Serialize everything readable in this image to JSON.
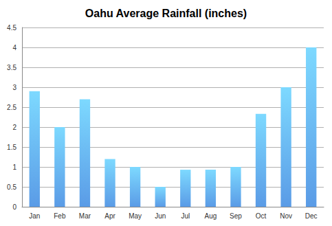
{
  "chart_data": {
    "type": "bar",
    "title": "Oahu Average Rainfall (inches)",
    "categories": [
      "Jan",
      "Feb",
      "Mar",
      "Apr",
      "May",
      "Jun",
      "Jul",
      "Aug",
      "Sep",
      "Oct",
      "Nov",
      "Dec"
    ],
    "values": [
      2.9,
      2.0,
      2.7,
      1.2,
      1.0,
      0.5,
      0.93,
      0.93,
      1.0,
      2.33,
      3.0,
      4.0
    ],
    "color": "#5a9be6",
    "ylim": [
      0,
      4.5
    ],
    "yticks": [
      0,
      0.5,
      1,
      1.5,
      2,
      2.5,
      3,
      3.5,
      4,
      4.5
    ],
    "grid": true
  }
}
